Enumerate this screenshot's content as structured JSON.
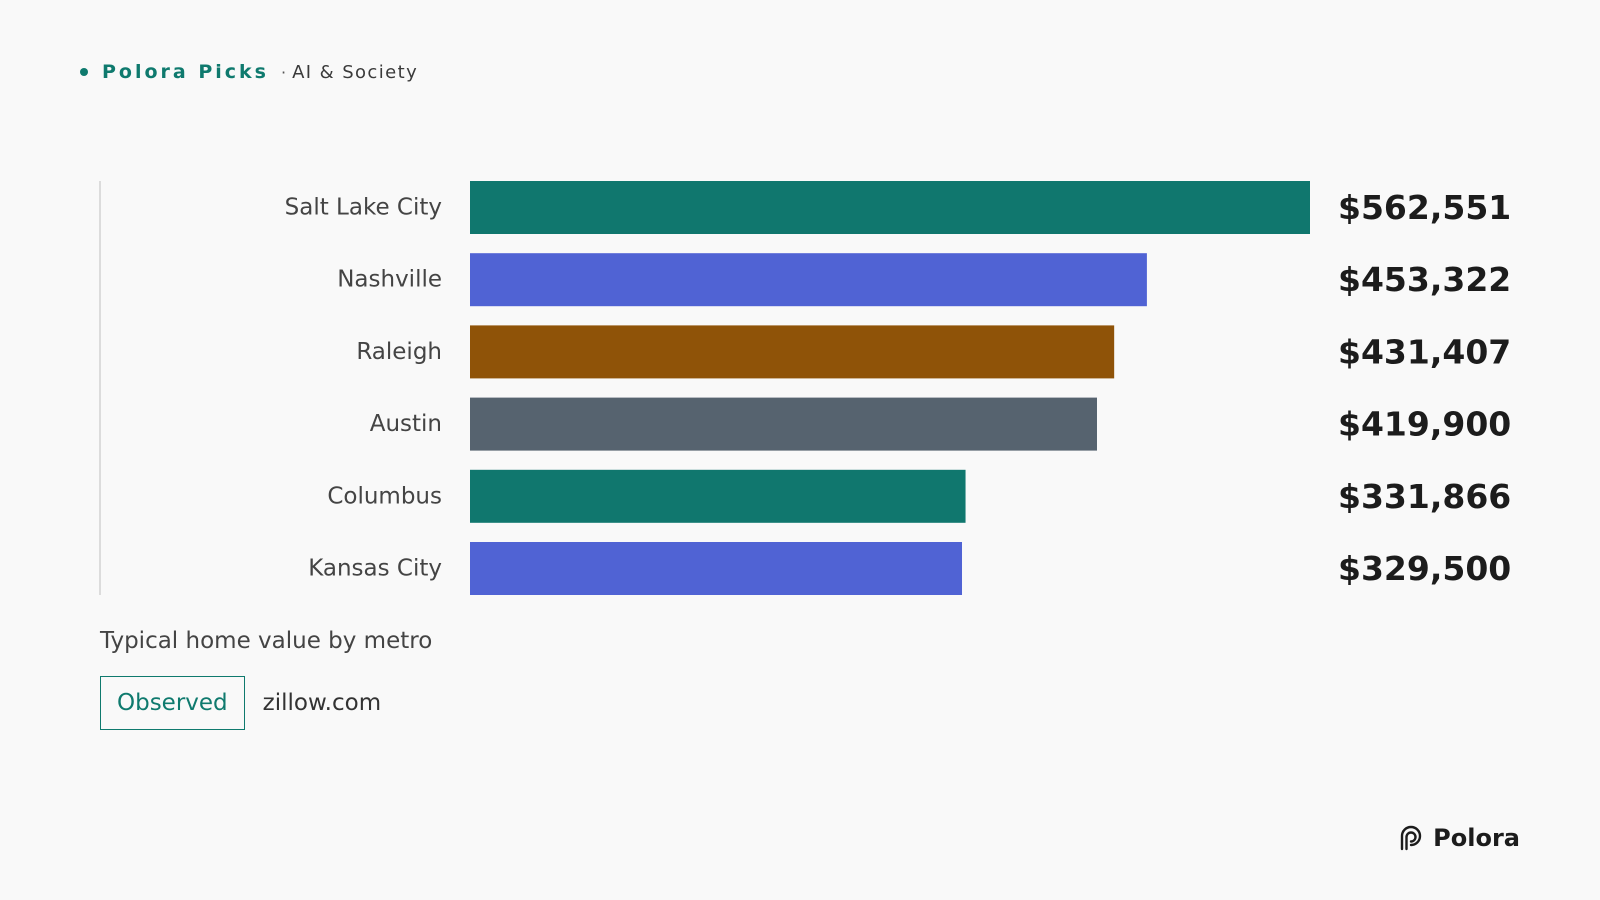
{
  "header": {
    "brand": "Polora Picks",
    "separator": "·",
    "section": "AI & Society"
  },
  "chart_data": {
    "type": "bar",
    "orientation": "horizontal",
    "categories": [
      "Salt Lake City",
      "Nashville",
      "Raleigh",
      "Austin",
      "Columbus",
      "Kansas City"
    ],
    "values": [
      562551,
      453322,
      431407,
      419900,
      331866,
      329500
    ],
    "value_labels": [
      "$562,551",
      "$453,322",
      "$431,407",
      "$419,900",
      "$331,866",
      "$329,500"
    ],
    "colors": [
      "#10776e",
      "#5063d4",
      "#8f5308",
      "#56636f",
      "#10776e",
      "#5063d4"
    ],
    "xlim": [
      0,
      562551
    ],
    "grid": false,
    "title": "",
    "xlabel": "",
    "ylabel": ""
  },
  "caption": "Typical home value by metro",
  "badge": "Observed",
  "source": "zillow.com",
  "logo": {
    "text": "Polora",
    "icon": "polora-logo-icon"
  },
  "colors": {
    "accent": "#0f7a6e",
    "background": "#f9f9f9"
  }
}
